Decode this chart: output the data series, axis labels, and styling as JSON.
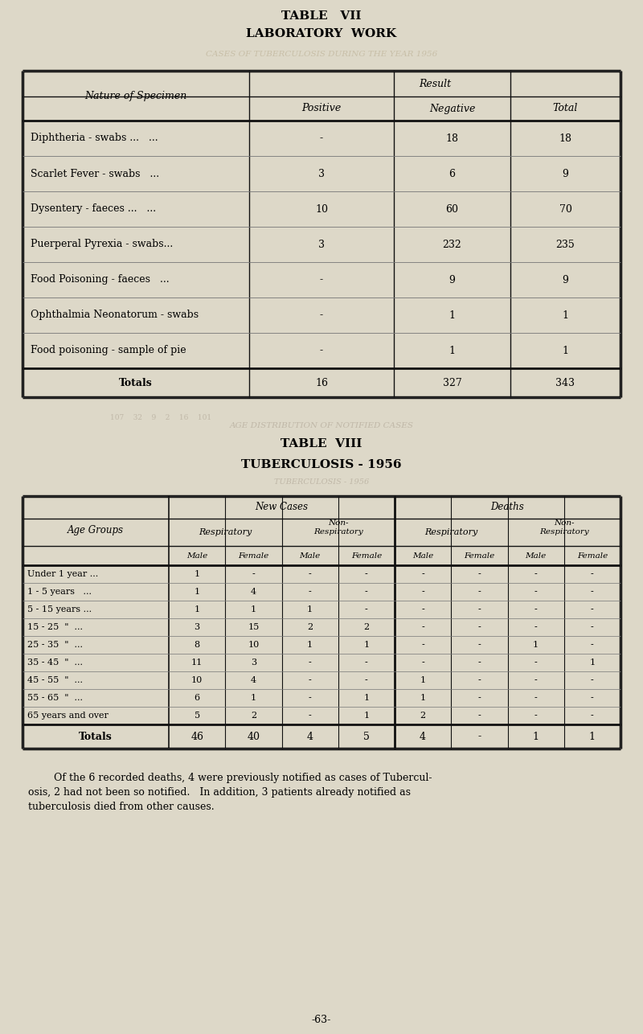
{
  "bg_color": "#ddd8c8",
  "title1": "TABLE   VII",
  "subtitle1": "LABORATORY  WORK",
  "ghost1": "CASES OF TUBERCULOSIS DURING THE YEAR 1956",
  "ghost2": "AGE DISTRIBUTION OF NOTIFIED CASES",
  "ghost3": "TUBERCULOSIS - 1956",
  "title2": "TABLE  VIII",
  "subtitle2": "TUBERCULOSIS - 1956",
  "footer": "-63-",
  "t1_rows": [
    [
      "Diphtheria - swabs ...   ...",
      "-",
      "18",
      "18"
    ],
    [
      "Scarlet Fever - swabs   ...",
      "3",
      "6",
      "9"
    ],
    [
      "Dysentery - faeces ...   ...",
      "10",
      "60",
      "70"
    ],
    [
      "Puerperal Pyrexia - swabs...",
      "3",
      "232",
      "235"
    ],
    [
      "Food Poisoning - faeces   ...",
      "-",
      "9",
      "9"
    ],
    [
      "Ophthalmia Neonatorum - swabs",
      "-",
      "1",
      "1"
    ],
    [
      "Food poisoning - sample of pie",
      "-",
      "1",
      "1"
    ]
  ],
  "t1_totals": [
    "Totals",
    "16",
    "327",
    "343"
  ],
  "t2_age_groups": [
    "Under 1 year ...",
    "1 - 5 years   ...",
    "5 - 15 years ...",
    "15 - 25  \"  ...",
    "25 - 35  \"  ...",
    "35 - 45  \"  ...",
    "45 - 55  \"  ...",
    "55 - 65  \"  ...",
    "65 years and over"
  ],
  "t2_data": [
    [
      "1",
      "-",
      "-",
      "-",
      "-",
      "-",
      "-",
      "-"
    ],
    [
      "1",
      "4",
      "-",
      "-",
      "-",
      "-",
      "-",
      "-"
    ],
    [
      "1",
      "1",
      "1",
      "-",
      "-",
      "-",
      "-",
      "-"
    ],
    [
      "3",
      "15",
      "2",
      "2",
      "-",
      "-",
      "-",
      "-"
    ],
    [
      "8",
      "10",
      "1",
      "1",
      "-",
      "-",
      "1",
      "-"
    ],
    [
      "11",
      "3",
      "-",
      "-",
      "-",
      "-",
      "-",
      "1"
    ],
    [
      "10",
      "4",
      "-",
      "-",
      "1",
      "-",
      "-",
      "-"
    ],
    [
      "6",
      "1",
      "-",
      "1",
      "1",
      "-",
      "-",
      "-"
    ],
    [
      "5",
      "2",
      "-",
      "1",
      "2",
      "-",
      "-",
      "-"
    ]
  ],
  "t2_totals": [
    "46",
    "40",
    "4",
    "5",
    "4",
    "-",
    "1",
    "1"
  ],
  "fn_line1": "        Of the 6 recorded deaths, 4 were previously notified as cases of Tubercul-",
  "fn_line2": "osis, 2 had not been so notified.   In addition, 3 patients already notified as",
  "fn_line3": "tuberculosis died from other causes."
}
